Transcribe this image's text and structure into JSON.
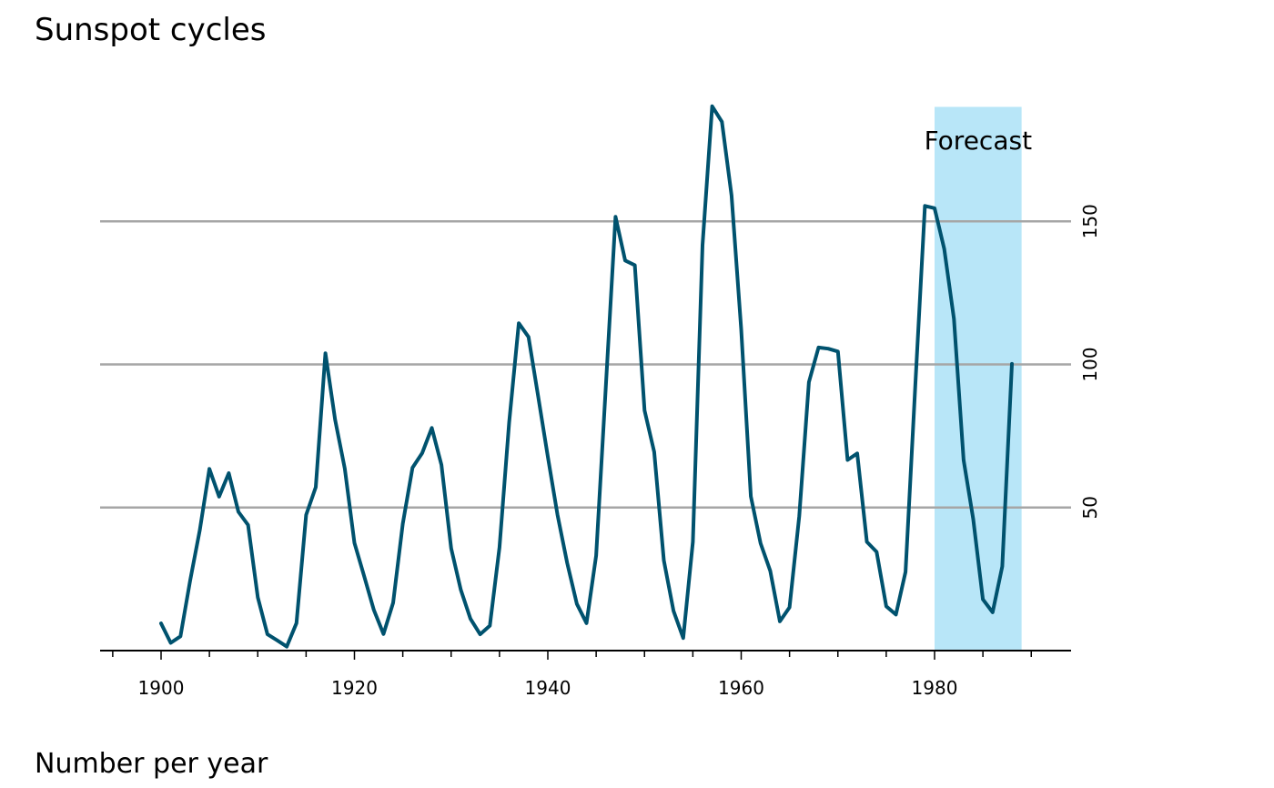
{
  "chart_data": {
    "type": "line",
    "title": "Sunspot cycles",
    "caption": "Number per year",
    "xlabel": "",
    "ylabel": "",
    "xlim": [
      1894,
      1993
    ],
    "ylim": [
      0,
      190
    ],
    "x_ticks": [
      1900,
      1920,
      1940,
      1960,
      1980
    ],
    "y_ticks": [
      50,
      100,
      150
    ],
    "grid": "horizontal",
    "y_axis_position": "right",
    "line_color": "#00526e",
    "forecast_band": {
      "start": 1980,
      "end": 1989,
      "label": "Forecast",
      "color": "#b8e6f8"
    },
    "series": [
      {
        "x": [
          1900,
          1901,
          1902,
          1903,
          1904,
          1905,
          1906,
          1907,
          1908,
          1909,
          1910,
          1911,
          1912,
          1913,
          1914,
          1915,
          1916,
          1917,
          1918,
          1919,
          1920,
          1921,
          1922,
          1923,
          1924,
          1925,
          1926,
          1927,
          1928,
          1929,
          1930,
          1931,
          1932,
          1933,
          1934,
          1935,
          1936,
          1937,
          1938,
          1939,
          1940,
          1941,
          1942,
          1943,
          1944,
          1945,
          1946,
          1947,
          1948,
          1949,
          1950,
          1951,
          1952,
          1953,
          1954,
          1955,
          1956,
          1957,
          1958,
          1959,
          1960,
          1961,
          1962,
          1963,
          1964,
          1965,
          1966,
          1967,
          1968,
          1969,
          1970,
          1971,
          1972,
          1973,
          1974,
          1975,
          1976,
          1977,
          1978,
          1979,
          1980,
          1981,
          1982,
          1983,
          1984,
          1985,
          1986,
          1987,
          1988
        ],
        "values": [
          9.5,
          2.7,
          5.0,
          24.4,
          42.0,
          63.5,
          53.8,
          62.0,
          48.5,
          43.9,
          18.6,
          5.7,
          3.6,
          1.4,
          9.6,
          47.4,
          57.1,
          103.9,
          80.6,
          63.6,
          37.6,
          26.1,
          14.2,
          5.8,
          16.7,
          44.3,
          63.9,
          69.0,
          77.8,
          64.9,
          35.7,
          21.2,
          11.1,
          5.7,
          8.7,
          36.1,
          79.7,
          114.4,
          109.6,
          88.8,
          67.8,
          47.5,
          30.6,
          16.3,
          9.6,
          33.2,
          92.6,
          151.6,
          136.3,
          134.7,
          83.9,
          69.4,
          31.5,
          13.9,
          4.4,
          38.0,
          141.7,
          190.2,
          184.8,
          159.0,
          112.3,
          53.9,
          37.5,
          27.9,
          10.2,
          15.1,
          47.0,
          93.8,
          105.9,
          105.5,
          104.5,
          66.6,
          68.9,
          38.0,
          34.5,
          15.5,
          12.6,
          27.5,
          92.5,
          155.4,
          154.6,
          140.4,
          115.9,
          66.6,
          45.9,
          17.9,
          13.4,
          29.4,
          100.2
        ]
      }
    ]
  }
}
